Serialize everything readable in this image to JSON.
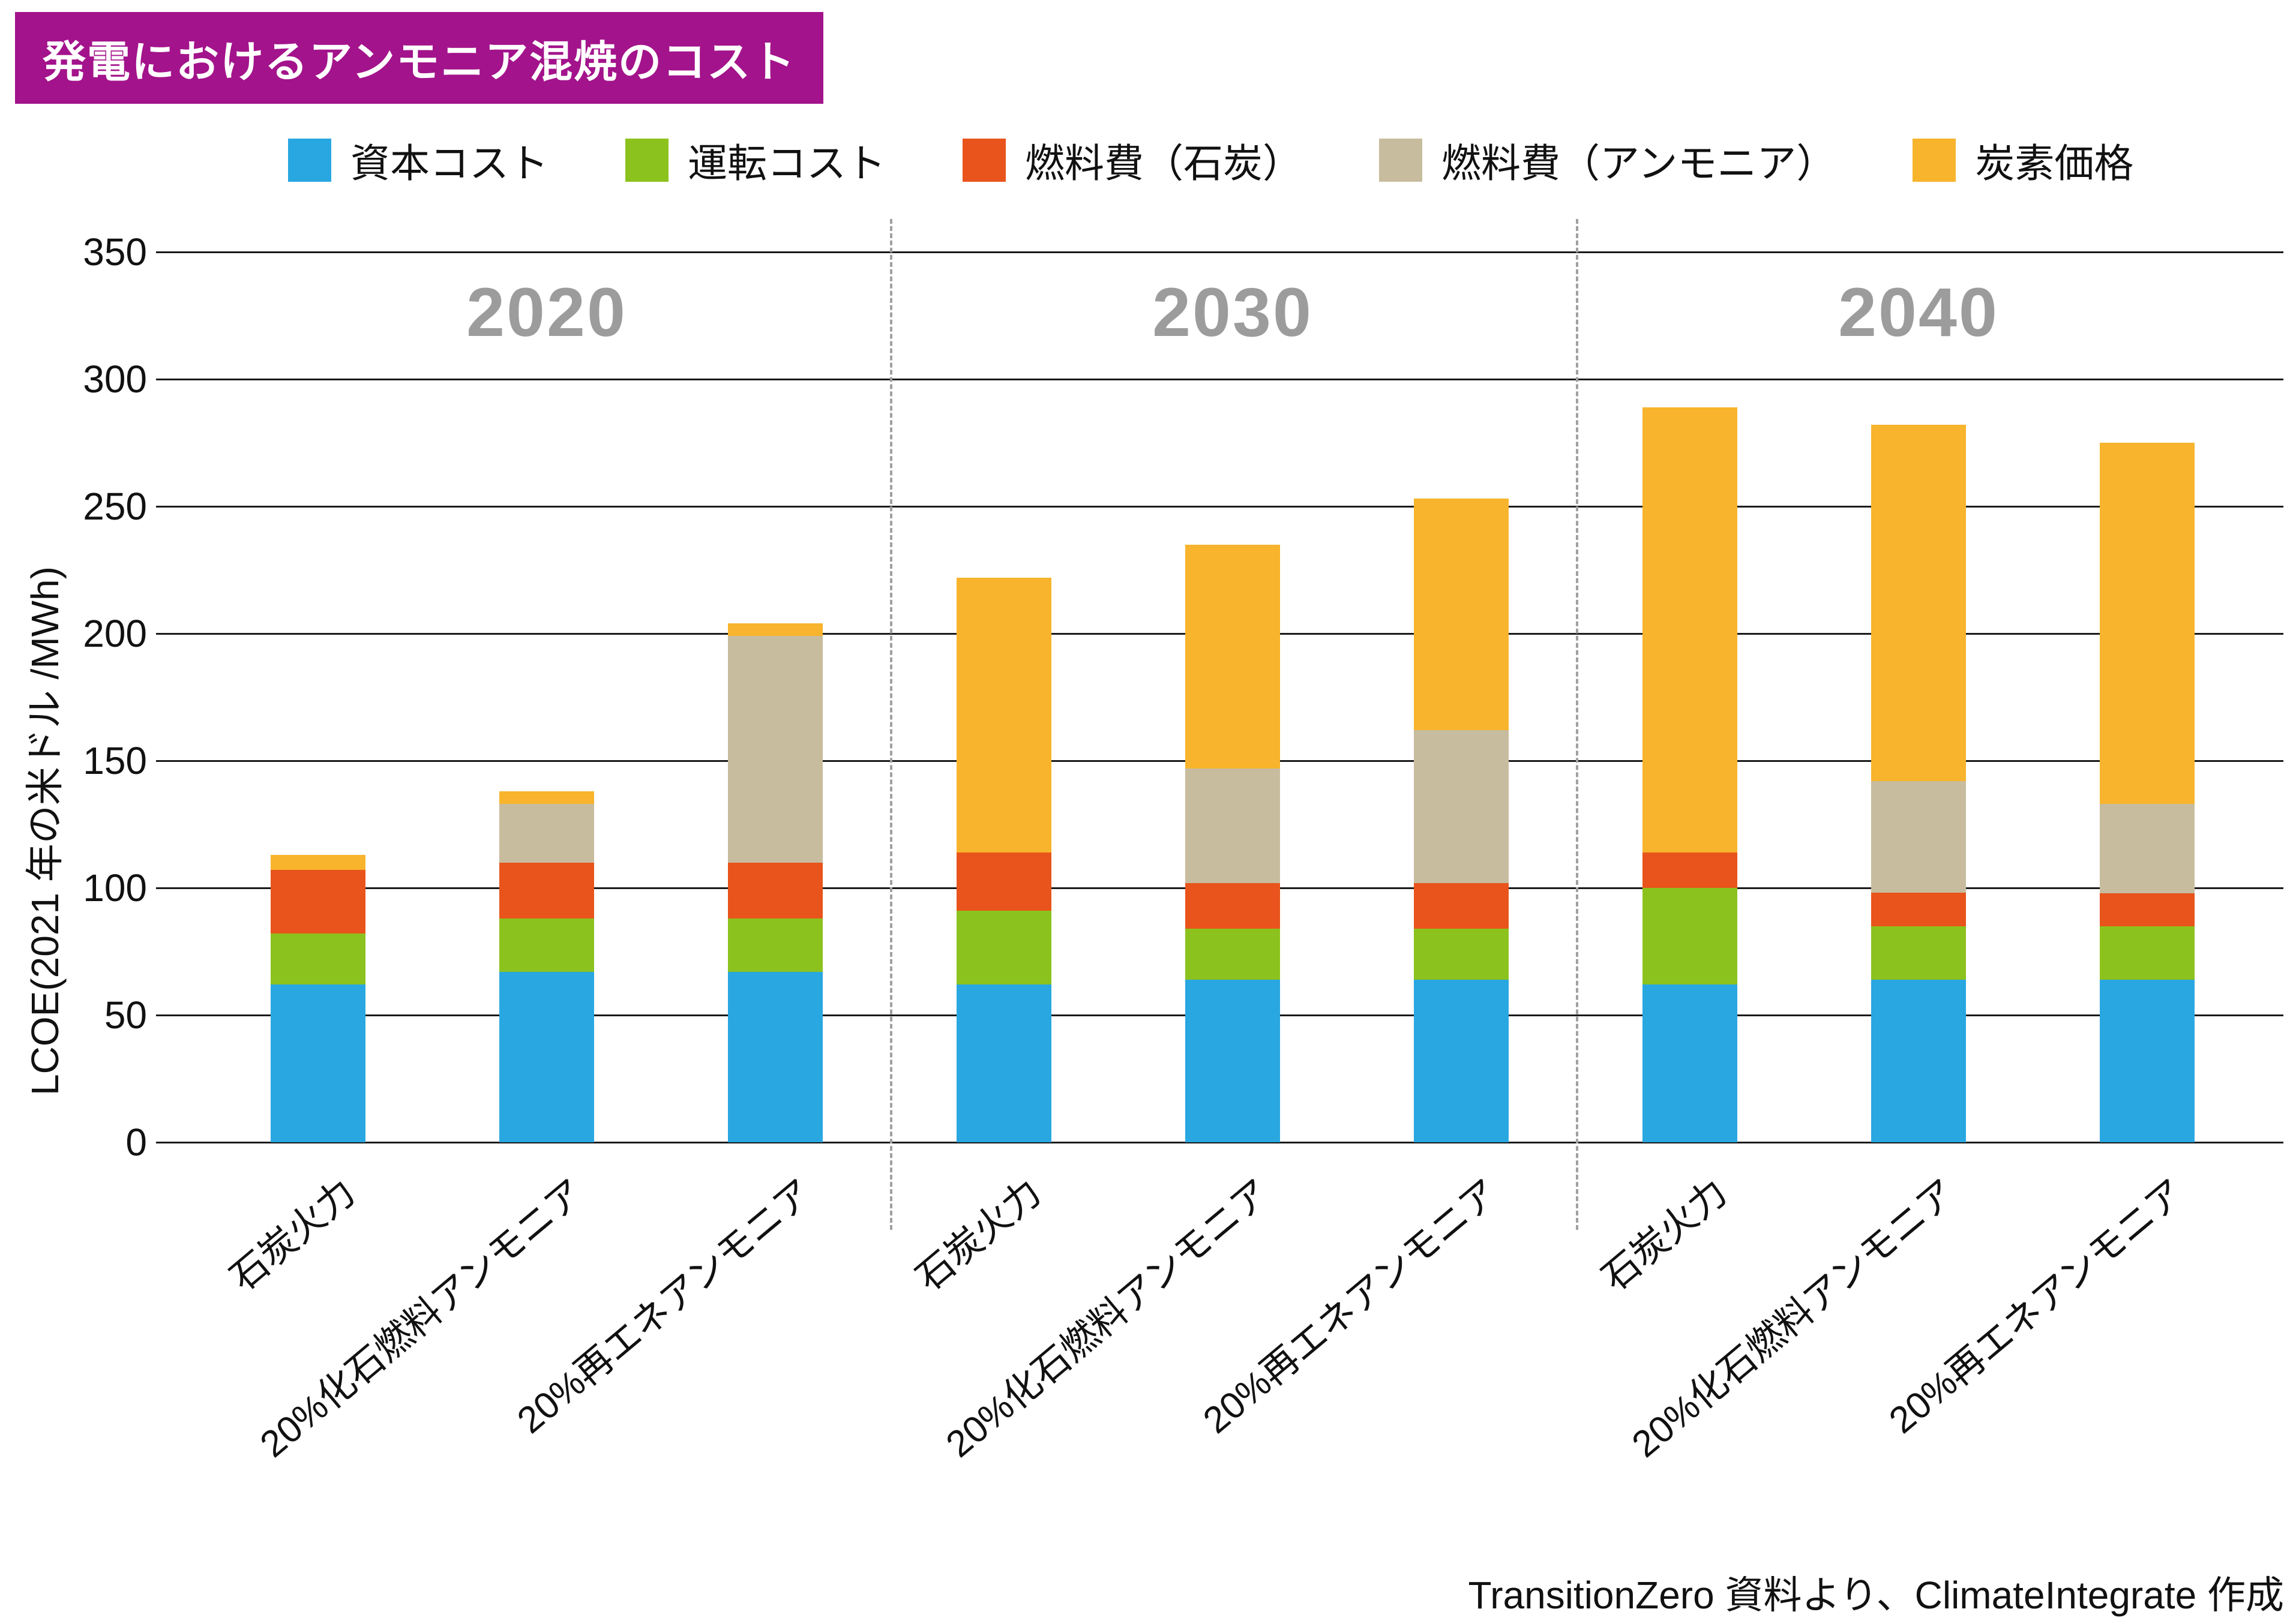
{
  "title": "発電におけるアンモニア混焼のコスト",
  "footer": "TransitionZero 資料より、ClimateIntegrate 作成",
  "colors": {
    "badge": "#A3138B",
    "grid": "#1a1a1a",
    "separator": "#a0a0a0",
    "period_label": "#9c9c9c"
  },
  "chart_data": {
    "type": "bar",
    "stacked": true,
    "title": "発電におけるアンモニア混焼のコスト",
    "ylabel": "LCOE(2021 年の米ドル /MWh)",
    "ylim": [
      0,
      350
    ],
    "yticks": [
      0,
      50,
      100,
      150,
      200,
      250,
      300,
      350
    ],
    "grid": true,
    "legend_position": "top",
    "groups": [
      {
        "label": "2020",
        "bar_indexes": [
          0,
          1,
          2
        ]
      },
      {
        "label": "2030",
        "bar_indexes": [
          3,
          4,
          5
        ]
      },
      {
        "label": "2040",
        "bar_indexes": [
          6,
          7,
          8
        ]
      }
    ],
    "categories": [
      "石炭火力",
      "20%化石燃料アンモニア",
      "20%再エネアンモニア",
      "石炭火力",
      "20%化石燃料アンモニア",
      "20%再エネアンモニア",
      "石炭火力",
      "20%化石燃料アンモニア",
      "20%再エネアンモニア"
    ],
    "series": [
      {
        "name": "資本コスト",
        "color": "#29A7E0",
        "values": [
          62,
          67,
          67,
          62,
          64,
          64,
          62,
          64,
          64
        ]
      },
      {
        "name": "運転コスト",
        "color": "#8CC21E",
        "values": [
          20,
          21,
          21,
          29,
          20,
          20,
          38,
          21,
          21
        ]
      },
      {
        "name": "燃料費（石炭）",
        "color": "#E8541B",
        "values": [
          25,
          22,
          22,
          23,
          18,
          18,
          14,
          13,
          13
        ]
      },
      {
        "name": "燃料費（アンモニア）",
        "color": "#C8BC9E",
        "values": [
          0,
          23,
          89,
          0,
          45,
          60,
          0,
          44,
          35
        ]
      },
      {
        "name": "炭素価格",
        "color": "#F7B42C",
        "values": [
          6,
          5,
          5,
          108,
          88,
          91,
          175,
          140,
          142
        ]
      }
    ],
    "totals": [
      113,
      138,
      204,
      222,
      235,
      253,
      289,
      282,
      275
    ]
  }
}
